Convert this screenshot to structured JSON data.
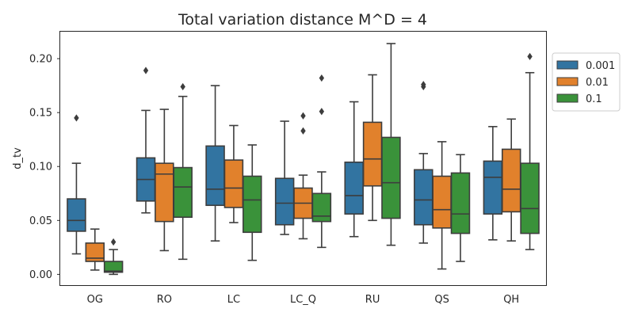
{
  "chart_data": {
    "type": "box",
    "title": "Total variation distance M^D = 4",
    "xlabel": "",
    "ylabel": "d_tv",
    "ylim": [
      -0.01,
      0.225
    ],
    "yticks": [
      0.0,
      0.05,
      0.1,
      0.15,
      0.2
    ],
    "ytick_labels": [
      "0.00",
      "0.05",
      "0.10",
      "0.15",
      "0.20"
    ],
    "grid": false,
    "legend_position": "outside-right",
    "categories": [
      "OG",
      "RO",
      "LC",
      "LC_Q",
      "RU",
      "QS",
      "QH"
    ],
    "series": [
      {
        "name": "0.001",
        "color": "#3274a1",
        "boxes": [
          {
            "whislo": 0.019,
            "q1": 0.04,
            "med": 0.05,
            "q3": 0.07,
            "whishi": 0.103,
            "fliers": [
              0.145
            ]
          },
          {
            "whislo": 0.057,
            "q1": 0.068,
            "med": 0.088,
            "q3": 0.108,
            "whishi": 0.152,
            "fliers": [
              0.189
            ]
          },
          {
            "whislo": 0.031,
            "q1": 0.064,
            "med": 0.079,
            "q3": 0.119,
            "whishi": 0.175,
            "fliers": []
          },
          {
            "whislo": 0.037,
            "q1": 0.046,
            "med": 0.066,
            "q3": 0.089,
            "whishi": 0.142,
            "fliers": []
          },
          {
            "whislo": 0.035,
            "q1": 0.056,
            "med": 0.073,
            "q3": 0.104,
            "whishi": 0.16,
            "fliers": []
          },
          {
            "whislo": 0.029,
            "q1": 0.046,
            "med": 0.069,
            "q3": 0.097,
            "whishi": 0.112,
            "fliers": [
              0.174,
              0.176
            ]
          },
          {
            "whislo": 0.032,
            "q1": 0.056,
            "med": 0.09,
            "q3": 0.105,
            "whishi": 0.137,
            "fliers": []
          }
        ]
      },
      {
        "name": "0.01",
        "color": "#e1812c",
        "boxes": [
          {
            "whislo": 0.004,
            "q1": 0.012,
            "med": 0.015,
            "q3": 0.029,
            "whishi": 0.042,
            "fliers": []
          },
          {
            "whislo": 0.022,
            "q1": 0.049,
            "med": 0.093,
            "q3": 0.103,
            "whishi": 0.153,
            "fliers": []
          },
          {
            "whislo": 0.048,
            "q1": 0.062,
            "med": 0.08,
            "q3": 0.106,
            "whishi": 0.138,
            "fliers": []
          },
          {
            "whislo": 0.033,
            "q1": 0.052,
            "med": 0.066,
            "q3": 0.08,
            "whishi": 0.092,
            "fliers": [
              0.133,
              0.147
            ]
          },
          {
            "whislo": 0.05,
            "q1": 0.082,
            "med": 0.107,
            "q3": 0.141,
            "whishi": 0.185,
            "fliers": []
          },
          {
            "whislo": 0.005,
            "q1": 0.043,
            "med": 0.06,
            "q3": 0.091,
            "whishi": 0.123,
            "fliers": []
          },
          {
            "whislo": 0.031,
            "q1": 0.058,
            "med": 0.079,
            "q3": 0.116,
            "whishi": 0.144,
            "fliers": []
          }
        ]
      },
      {
        "name": "0.1",
        "color": "#3a923a",
        "boxes": [
          {
            "whislo": 0.0,
            "q1": 0.002,
            "med": 0.003,
            "q3": 0.012,
            "whishi": 0.023,
            "fliers": [
              0.03
            ]
          },
          {
            "whislo": 0.014,
            "q1": 0.053,
            "med": 0.081,
            "q3": 0.099,
            "whishi": 0.165,
            "fliers": [
              0.174
            ]
          },
          {
            "whislo": 0.013,
            "q1": 0.039,
            "med": 0.069,
            "q3": 0.091,
            "whishi": 0.12,
            "fliers": []
          },
          {
            "whislo": 0.025,
            "q1": 0.049,
            "med": 0.054,
            "q3": 0.075,
            "whishi": 0.095,
            "fliers": [
              0.151,
              0.182
            ]
          },
          {
            "whislo": 0.027,
            "q1": 0.052,
            "med": 0.085,
            "q3": 0.127,
            "whishi": 0.214,
            "fliers": []
          },
          {
            "whislo": 0.012,
            "q1": 0.038,
            "med": 0.056,
            "q3": 0.094,
            "whishi": 0.111,
            "fliers": []
          },
          {
            "whislo": 0.023,
            "q1": 0.038,
            "med": 0.061,
            "q3": 0.103,
            "whishi": 0.187,
            "fliers": [
              0.202
            ]
          }
        ]
      }
    ]
  }
}
